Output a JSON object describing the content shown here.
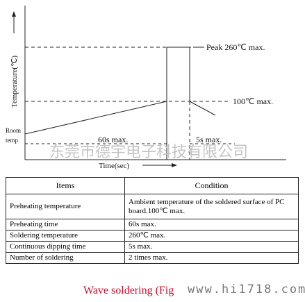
{
  "diagram": {
    "y_axis_label": "Temperature(℃)",
    "x_axis_label": "Time(sec)",
    "peak_label": "Peak 260℃ max.",
    "preheat_label": "100℃ max.",
    "room_label": [
      "Room",
      "temp"
    ],
    "preheat_time_label": "60s max.",
    "dip_time_label": "5s max.",
    "watermark": "东莞市德宇电子科技有限公司"
  },
  "table": {
    "header": [
      "Items",
      "Condition"
    ],
    "rows": [
      [
        "Preheating temperature",
        "Ambient temperature of the soldered surface of  PC board.100℃ max."
      ],
      [
        "Preheating time",
        "60s max."
      ],
      [
        "Soldering temperature",
        "260℃ max."
      ],
      [
        "Continuous dipping time",
        "5s max."
      ],
      [
        "Number of soldering",
        "2 times max."
      ]
    ]
  },
  "caption": "Wave soldering (Fig",
  "site_watermark": "www.hi1718.com"
}
